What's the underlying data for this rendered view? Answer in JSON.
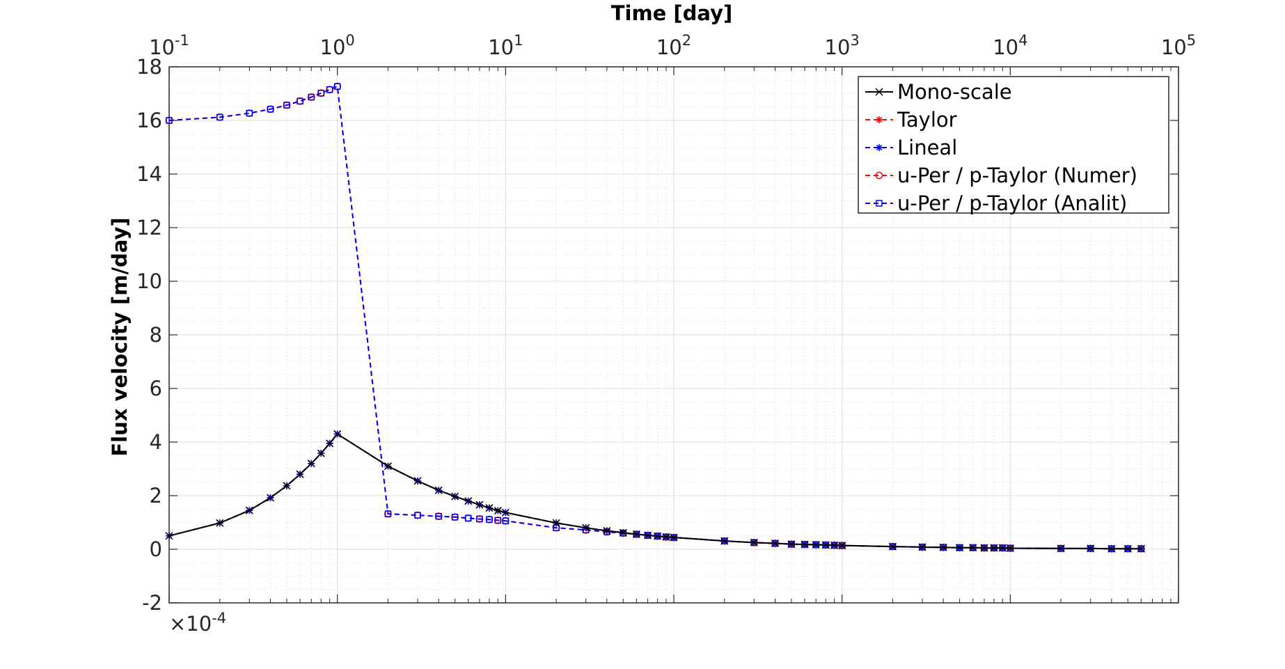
{
  "chart_data": {
    "type": "line",
    "xlabel": "Time [day]",
    "ylabel": "Flux velocity [m/day]",
    "x_scale": "log",
    "x_axis_position": "top",
    "xlim": [
      0.1,
      100000
    ],
    "ylim": [
      -2,
      18
    ],
    "y_scale_multiplier": "×10^-4",
    "grid": true,
    "minor_grid": true,
    "legend_position": "top-right",
    "x_ticks": [
      {
        "base": "10",
        "exp": "-1"
      },
      {
        "base": "10",
        "exp": "0"
      },
      {
        "base": "10",
        "exp": "1"
      },
      {
        "base": "10",
        "exp": "2"
      },
      {
        "base": "10",
        "exp": "3"
      },
      {
        "base": "10",
        "exp": "4"
      },
      {
        "base": "10",
        "exp": "5"
      }
    ],
    "y_ticks": [
      "-2",
      "0",
      "2",
      "4",
      "6",
      "8",
      "10",
      "12",
      "14",
      "16",
      "18"
    ],
    "multiplier_label": {
      "prefix": "×10",
      "exp": "-4"
    },
    "x": [
      0.1,
      0.2,
      0.3,
      0.4,
      0.5,
      0.6,
      0.7,
      0.8,
      0.9,
      1,
      2,
      3,
      4,
      5,
      6,
      7,
      8,
      9,
      10,
      20,
      30,
      40,
      50,
      60,
      70,
      80,
      90,
      100,
      200,
      300,
      400,
      500,
      600,
      700,
      800,
      900,
      1000,
      2000,
      3000,
      4000,
      5000,
      6000,
      7000,
      8000,
      9000,
      10000,
      20000,
      30000,
      40000,
      50000,
      60000
    ],
    "series": [
      {
        "name": "Mono-scale",
        "color": "#000000",
        "dash": "solid",
        "marker": "x",
        "values": [
          0.5,
          0.98,
          1.45,
          1.92,
          2.37,
          2.8,
          3.2,
          3.58,
          3.95,
          4.3,
          3.1,
          2.55,
          2.2,
          1.97,
          1.8,
          1.66,
          1.54,
          1.44,
          1.37,
          0.98,
          0.8,
          0.69,
          0.62,
          0.56,
          0.52,
          0.49,
          0.46,
          0.44,
          0.31,
          0.25,
          0.22,
          0.19,
          0.18,
          0.17,
          0.16,
          0.15,
          0.14,
          0.1,
          0.08,
          0.07,
          0.06,
          0.06,
          0.05,
          0.05,
          0.05,
          0.04,
          0.03,
          0.03,
          0.02,
          0.02,
          0.02
        ]
      },
      {
        "name": "Taylor",
        "color": "#ff0000",
        "dash": "dashed",
        "marker": "asterisk",
        "values": [
          0.5,
          0.98,
          1.45,
          1.92,
          2.37,
          2.8,
          3.2,
          3.58,
          3.95,
          4.3,
          3.1,
          2.55,
          2.2,
          1.97,
          1.8,
          1.66,
          1.54,
          1.44,
          1.37,
          0.98,
          0.8,
          0.69,
          0.62,
          0.56,
          0.52,
          0.49,
          0.46,
          0.44,
          0.31,
          0.25,
          0.22,
          0.19,
          0.18,
          0.17,
          0.16,
          0.15,
          0.14,
          0.1,
          0.08,
          0.07,
          0.06,
          0.06,
          0.05,
          0.05,
          0.05,
          0.04,
          0.03,
          0.03,
          0.02,
          0.02,
          0.02
        ]
      },
      {
        "name": "Lineal",
        "color": "#0000ff",
        "dash": "dashed",
        "marker": "asterisk",
        "values": [
          0.5,
          0.98,
          1.45,
          1.92,
          2.37,
          2.8,
          3.2,
          3.58,
          3.95,
          4.3,
          3.1,
          2.55,
          2.2,
          1.97,
          1.8,
          1.66,
          1.54,
          1.44,
          1.37,
          0.98,
          0.8,
          0.69,
          0.62,
          0.56,
          0.52,
          0.49,
          0.46,
          0.44,
          0.31,
          0.25,
          0.22,
          0.19,
          0.18,
          0.17,
          0.16,
          0.15,
          0.14,
          0.1,
          0.08,
          0.07,
          0.06,
          0.06,
          0.05,
          0.05,
          0.05,
          0.04,
          0.03,
          0.03,
          0.02,
          0.02,
          0.02
        ]
      },
      {
        "name": "u-Per / p-Taylor (Numer)",
        "color": "#ff0000",
        "dash": "dashed",
        "marker": "circle",
        "values": [
          16.0,
          16.12,
          16.27,
          16.42,
          16.57,
          16.72,
          16.87,
          17.02,
          17.15,
          17.27,
          1.32,
          1.27,
          1.23,
          1.2,
          1.16,
          1.13,
          1.11,
          1.08,
          1.06,
          0.8,
          0.72,
          0.65,
          0.6,
          0.56,
          0.52,
          0.49,
          0.46,
          0.44,
          0.31,
          0.25,
          0.22,
          0.19,
          0.18,
          0.17,
          0.16,
          0.15,
          0.14,
          0.1,
          0.08,
          0.07,
          0.06,
          0.06,
          0.05,
          0.05,
          0.05,
          0.04,
          0.03,
          0.03,
          0.02,
          0.02,
          0.02
        ]
      },
      {
        "name": "u-Per / p-Taylor (Analit)",
        "color": "#0000ff",
        "dash": "dashed",
        "marker": "square",
        "values": [
          16.0,
          16.12,
          16.27,
          16.42,
          16.57,
          16.72,
          16.87,
          17.02,
          17.15,
          17.27,
          1.32,
          1.27,
          1.23,
          1.2,
          1.16,
          1.13,
          1.11,
          1.08,
          1.06,
          0.8,
          0.72,
          0.65,
          0.6,
          0.56,
          0.52,
          0.49,
          0.46,
          0.44,
          0.31,
          0.25,
          0.22,
          0.19,
          0.18,
          0.17,
          0.16,
          0.15,
          0.14,
          0.1,
          0.08,
          0.07,
          0.06,
          0.06,
          0.05,
          0.05,
          0.05,
          0.04,
          0.03,
          0.03,
          0.02,
          0.02,
          0.02
        ]
      }
    ]
  }
}
